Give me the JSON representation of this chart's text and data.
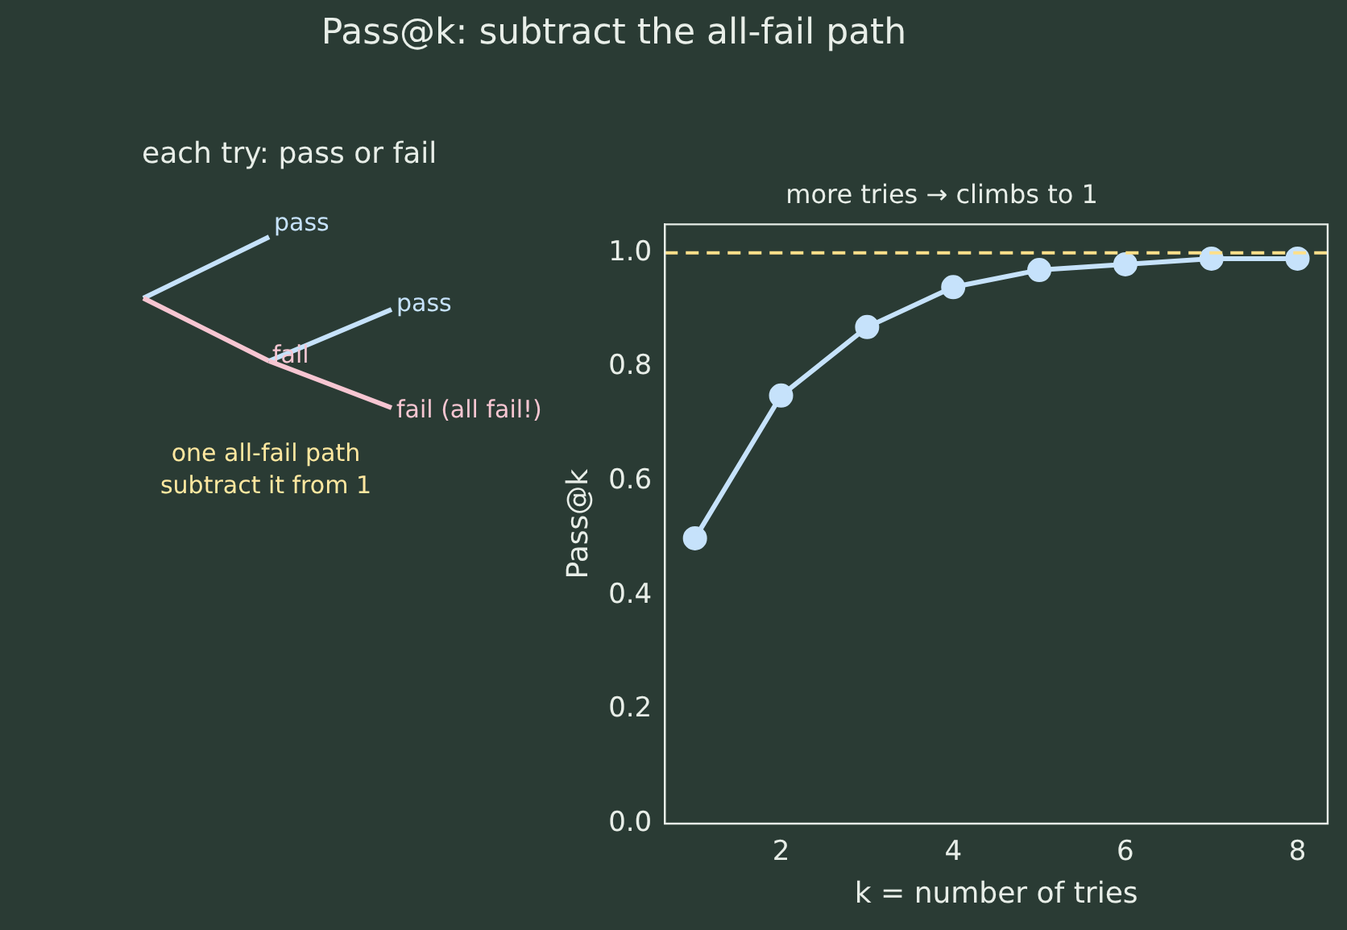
{
  "chart_data": [
    {
      "type": "other",
      "title": "Pass@k: subtract the all-fail path",
      "subtitle": "each try: pass or fail",
      "annotations": [
        "pass",
        "pass",
        "fail",
        "fail (all fail!)",
        "one all-fail path",
        "subtract it from 1"
      ]
    },
    {
      "type": "line",
      "title": "more tries → climbs to 1",
      "xlabel": "k = number of tries",
      "ylabel": "Pass@k",
      "x": [
        1,
        2,
        3,
        4,
        5,
        6,
        7,
        8
      ],
      "series": [
        {
          "color": "#c6e2fb",
          "values": [
            0.5,
            0.75,
            0.87,
            0.94,
            0.97,
            0.98,
            0.99,
            0.99
          ]
        }
      ],
      "xlim": [
        0.65,
        8.35
      ],
      "xticks": [
        2,
        4,
        6,
        8
      ],
      "ylim": [
        0,
        1.05
      ],
      "yticks": [
        {
          "value": 0,
          "label": "0.0"
        },
        {
          "value": 0.2,
          "label": "0.2"
        },
        {
          "value": 0.4,
          "label": "0.4"
        },
        {
          "value": 0.6,
          "label": "0.6"
        },
        {
          "value": 0.8,
          "label": "0.8"
        },
        {
          "value": 1,
          "label": "1.0"
        }
      ],
      "ref_lines": [
        {
          "axis": "y",
          "value": 1,
          "color": "#ffe08a",
          "line_style": "dashed"
        }
      ],
      "marker": "circle",
      "line_style": "solid",
      "grid": false,
      "legend": false
    }
  ]
}
